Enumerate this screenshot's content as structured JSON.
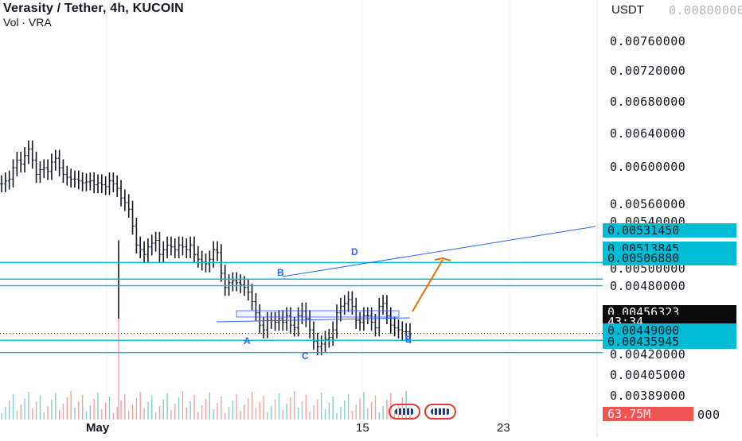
{
  "header": {
    "title": "Verasity / Tether, 4h, KUCOIN",
    "subtitle": "Vol · VRA"
  },
  "axis_unit": "USDT",
  "price_labels": [
    "0.00760000",
    "0.00720000",
    "0.00680000",
    "0.00640000",
    "0.00600000",
    "0.00560000",
    "0.00540000",
    "0.00500000",
    "0.00480000",
    "0.00420000",
    "0.00405000",
    "0.00389000"
  ],
  "faded_top_label": "0.00800000",
  "tags": {
    "level1": "0.00531450",
    "level2": "0.00513845",
    "level3": "0.00506880",
    "current_price": "0.00456323",
    "countdown": "43:34",
    "level4": "0.00449000",
    "level5": "0.00435945",
    "volume": "63.75M",
    "volume_tail": "000"
  },
  "x_labels": {
    "may": "May",
    "d15": "15",
    "d23": "23"
  },
  "points": {
    "A": "A",
    "B": "B",
    "C": "C",
    "D": "D",
    "E": "E"
  },
  "colors": {
    "bar": "#131722",
    "level_line": "#00bcd4",
    "trendline": "#2962ff",
    "arrow": "#ef6c00",
    "volume_up": "#26a69a",
    "volume_down": "#ef5350"
  },
  "chart_data": {
    "type": "ohlc",
    "symbol": "Verasity / Tether",
    "interval": "4h",
    "exchange": "KUCOIN",
    "ylim": [
      0.0038,
      0.0081
    ],
    "horizontal_levels": [
      0.0053145,
      0.00513845,
      0.0050688,
      0.00449,
      0.00435945
    ],
    "current_price": 0.00456323,
    "x_ticks": [
      "May",
      "15",
      "23"
    ],
    "series": [
      {
        "values": [
          0.00615,
          0.00618,
          0.0062,
          0.00632,
          0.0064,
          0.00636,
          0.00645,
          0.00652,
          0.0064,
          0.00625,
          0.0063,
          0.00632,
          0.00628,
          0.00638,
          0.00642,
          0.00632,
          0.00625,
          0.00622,
          0.0062,
          0.0062,
          0.00618,
          0.00616,
          0.00617,
          0.00618,
          0.00614,
          0.00616,
          0.00614,
          0.00612,
          0.00618,
          0.00615,
          0.0061,
          0.006,
          0.00595,
          0.00588,
          0.0057,
          0.0055,
          0.00545,
          0.0054,
          0.00548,
          0.00552,
          0.00555,
          0.0054,
          0.00545,
          0.0055,
          0.00548,
          0.00545,
          0.0055,
          0.00548,
          0.00545,
          0.0055,
          0.0054,
          0.00535,
          0.00532,
          0.0053,
          0.00535,
          0.00545,
          0.00542,
          0.0052,
          0.00505,
          0.0051,
          0.00512,
          0.0051,
          0.00508,
          0.00505,
          0.005,
          0.0049,
          0.00478,
          0.00465,
          0.0046,
          0.0047,
          0.0047,
          0.00468,
          0.00472,
          0.00468,
          0.00475,
          0.00465,
          0.00462,
          0.00475,
          0.0048,
          0.00472,
          0.0046,
          0.00448,
          0.00442,
          0.00445,
          0.0045,
          0.00452,
          0.0046,
          0.00478,
          0.00485,
          0.00488,
          0.00492,
          0.00485,
          0.0047,
          0.00468,
          0.00475,
          0.00475,
          0.00468,
          0.00462,
          0.00485,
          0.00488,
          0.00475,
          0.00465,
          0.00462,
          0.0046,
          0.00458,
          0.00458,
          0.00455
        ]
      }
    ]
  }
}
